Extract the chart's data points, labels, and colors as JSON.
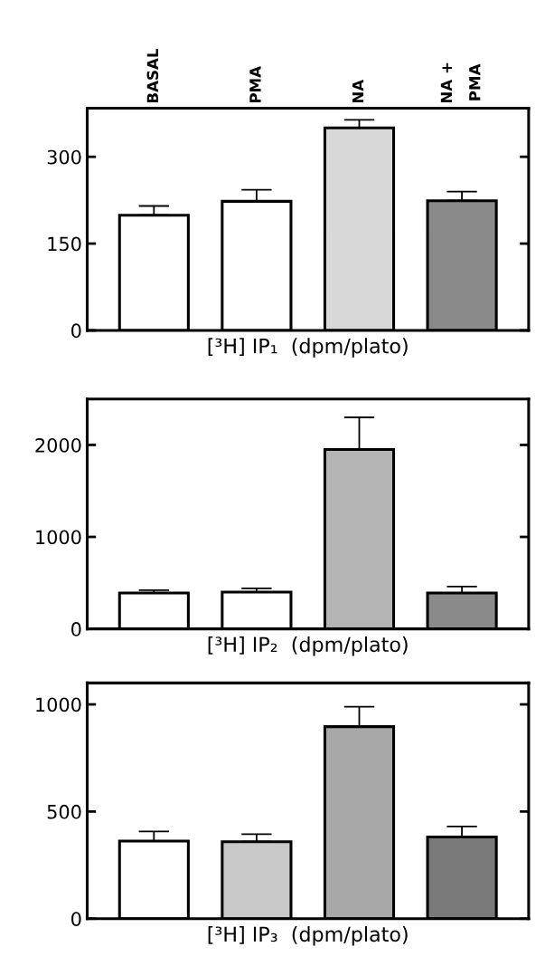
{
  "chart_data": [
    {
      "type": "bar",
      "xlabel": "[³H] IP₁  (dpm/plato)",
      "categories": [
        "BASAL",
        "PMA",
        "NA",
        "NA +\nPMA"
      ],
      "values": [
        199,
        223,
        350,
        224
      ],
      "errors": [
        [
          199,
          215
        ],
        [
          223,
          243
        ],
        [
          350,
          364
        ],
        [
          224,
          240
        ]
      ],
      "colors": [
        "#ffffff",
        "#ffffff",
        "#d8d8d8",
        "#8a8a8a"
      ],
      "ylim": [
        0,
        384
      ],
      "yticks": [
        0,
        150,
        300
      ],
      "grid": false,
      "legend": false
    },
    {
      "type": "bar",
      "xlabel": "[³H] IP₂  (dpm/plato)",
      "categories": [
        null,
        null,
        null,
        null
      ],
      "values": [
        390,
        400,
        1950,
        390
      ],
      "errors": [
        [
          390,
          420
        ],
        [
          400,
          440
        ],
        [
          1950,
          2300
        ],
        [
          390,
          460
        ]
      ],
      "colors": [
        "#ffffff",
        "#ffffff",
        "#b4b4b4",
        "#8a8a8a"
      ],
      "ylim": [
        0,
        2500
      ],
      "yticks": [
        0,
        1000,
        2000
      ],
      "tick_labels": "y",
      "grid": false,
      "legend": false
    },
    {
      "type": "bar",
      "xlabel": "[³H] IP₃  (dpm/plato)",
      "categories": [
        null,
        null,
        null,
        null
      ],
      "values": [
        362,
        359,
        896,
        381
      ],
      "errors": [
        [
          362,
          407
        ],
        [
          359,
          394
        ],
        [
          896,
          989
        ],
        [
          381,
          430
        ]
      ],
      "colors": [
        "#ffffff",
        "#c8c8c8",
        "#a8a8a8",
        "#7a7a7a"
      ],
      "ylim": [
        0,
        1100
      ],
      "yticks": [
        0,
        500,
        1000
      ],
      "tick_labels": "y",
      "grid": false,
      "legend": false
    }
  ]
}
